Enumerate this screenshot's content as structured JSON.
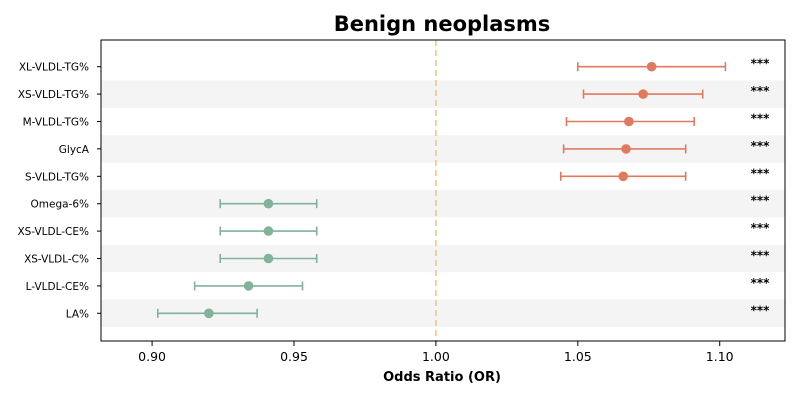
{
  "chart_data": {
    "type": "forest",
    "title": "Benign neoplasms",
    "xlabel": "Odds Ratio (OR)",
    "xlim": [
      0.882,
      1.123
    ],
    "xticks": [
      "0.90",
      "0.95",
      "1.00",
      "1.05",
      "1.10"
    ],
    "xtick_values": [
      0.9,
      0.95,
      1.0,
      1.05,
      1.1
    ],
    "reference_line": 1.0,
    "reference_color": "#f5c27a",
    "stripe_color": "#f4f4f4",
    "colors": {
      "risk": "#e07a5f",
      "protective": "#81b29a"
    },
    "rows": [
      {
        "label": "XL-VLDL-TG%",
        "or": 1.076,
        "lo": 1.05,
        "hi": 1.102,
        "sig": "***",
        "group": "risk"
      },
      {
        "label": "XS-VLDL-TG%",
        "or": 1.073,
        "lo": 1.052,
        "hi": 1.094,
        "sig": "***",
        "group": "risk"
      },
      {
        "label": "M-VLDL-TG%",
        "or": 1.068,
        "lo": 1.046,
        "hi": 1.091,
        "sig": "***",
        "group": "risk"
      },
      {
        "label": "GlycA",
        "or": 1.067,
        "lo": 1.045,
        "hi": 1.088,
        "sig": "***",
        "group": "risk"
      },
      {
        "label": "S-VLDL-TG%",
        "or": 1.066,
        "lo": 1.044,
        "hi": 1.088,
        "sig": "***",
        "group": "risk"
      },
      {
        "label": "Omega-6%",
        "or": 0.941,
        "lo": 0.924,
        "hi": 0.958,
        "sig": "***",
        "group": "protective"
      },
      {
        "label": "XS-VLDL-CE%",
        "or": 0.941,
        "lo": 0.924,
        "hi": 0.958,
        "sig": "***",
        "group": "protective"
      },
      {
        "label": "XS-VLDL-C%",
        "or": 0.941,
        "lo": 0.924,
        "hi": 0.958,
        "sig": "***",
        "group": "protective"
      },
      {
        "label": "L-VLDL-CE%",
        "or": 0.934,
        "lo": 0.915,
        "hi": 0.953,
        "sig": "***",
        "group": "protective"
      },
      {
        "label": "LA%",
        "or": 0.92,
        "lo": 0.902,
        "hi": 0.937,
        "sig": "***",
        "group": "protective"
      }
    ]
  }
}
